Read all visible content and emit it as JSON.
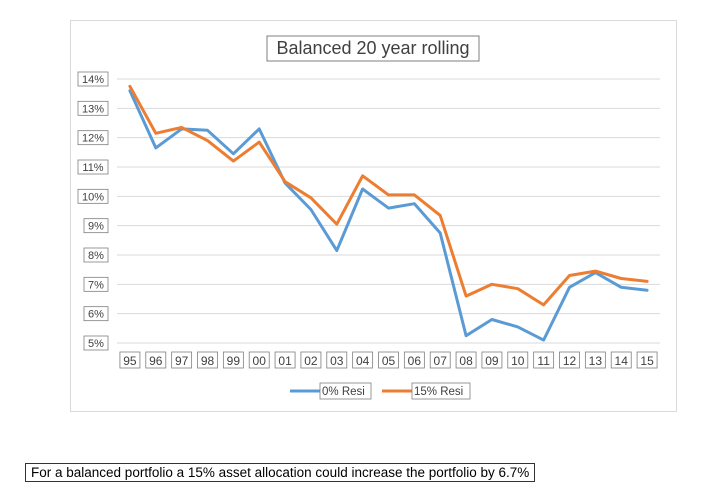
{
  "chart_data": {
    "type": "line",
    "title": "Balanced 20 year rolling",
    "categories": [
      "95",
      "96",
      "97",
      "98",
      "99",
      "00",
      "01",
      "02",
      "03",
      "04",
      "05",
      "06",
      "07",
      "08",
      "09",
      "10",
      "11",
      "12",
      "13",
      "14",
      "15"
    ],
    "y_ticks": [
      "5%",
      "6%",
      "7%",
      "8%",
      "9%",
      "10%",
      "11%",
      "12%",
      "13%",
      "14%"
    ],
    "ylim": [
      5,
      14
    ],
    "grid": true,
    "legend_position": "bottom",
    "series": [
      {
        "name": "0% Resi",
        "color": "#5b9bd5",
        "values": [
          13.6,
          11.65,
          12.3,
          12.25,
          11.45,
          12.3,
          10.45,
          9.55,
          8.15,
          10.25,
          9.6,
          9.75,
          8.75,
          5.25,
          5.8,
          5.55,
          5.1,
          6.9,
          7.4,
          6.9,
          6.8
        ]
      },
      {
        "name": "15% Resi",
        "color": "#ed7d31",
        "values": [
          13.75,
          12.15,
          12.35,
          11.9,
          11.2,
          11.85,
          10.5,
          9.95,
          9.05,
          10.7,
          10.05,
          10.05,
          9.35,
          6.6,
          7.0,
          6.85,
          6.3,
          7.3,
          7.45,
          7.2,
          7.1
        ]
      }
    ]
  },
  "caption": "For a balanced portfolio a 15% asset allocation could increase the portfolio by 6.7%"
}
